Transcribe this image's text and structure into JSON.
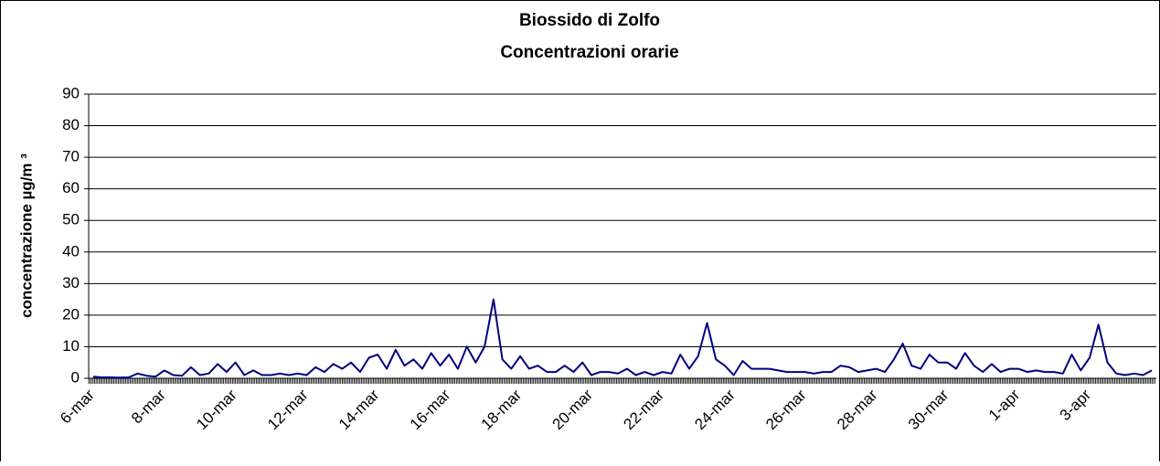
{
  "chart_data": {
    "type": "line",
    "title": "Biossido di Zolfo",
    "subtitle": "Concentrazioni orarie",
    "y_label": "concentrazione µg/m ³",
    "categories": [
      "6-mar",
      null,
      null,
      null,
      null,
      null,
      null,
      null,
      "8-mar",
      null,
      null,
      null,
      null,
      null,
      null,
      null,
      "10-mar",
      null,
      null,
      null,
      null,
      null,
      null,
      null,
      "12-mar",
      null,
      null,
      null,
      null,
      null,
      null,
      null,
      "14-mar",
      null,
      null,
      null,
      null,
      null,
      null,
      null,
      "16-mar",
      null,
      null,
      null,
      null,
      null,
      null,
      null,
      "18-mar",
      null,
      null,
      null,
      null,
      null,
      null,
      null,
      "20-mar",
      null,
      null,
      null,
      null,
      null,
      null,
      null,
      "22-mar",
      null,
      null,
      null,
      null,
      null,
      null,
      null,
      "24-mar",
      null,
      null,
      null,
      null,
      null,
      null,
      null,
      "26-mar",
      null,
      null,
      null,
      null,
      null,
      null,
      null,
      "28-mar",
      null,
      null,
      null,
      null,
      null,
      null,
      null,
      "30-mar",
      null,
      null,
      null,
      null,
      null,
      null,
      null,
      "1-apr",
      null,
      null,
      null,
      null,
      null,
      null,
      null,
      "3-apr",
      null,
      null,
      null,
      null,
      null,
      null,
      null
    ],
    "series": [
      {
        "name": "Biossido di Zolfo",
        "color": "#000080",
        "values": [
          0.5,
          0.3,
          0.3,
          0.2,
          0.3,
          1.5,
          0.8,
          0.5,
          2.5,
          1,
          0.8,
          3.5,
          1,
          1.5,
          4.5,
          2,
          5,
          1,
          2.5,
          1,
          1,
          1.5,
          1,
          1.5,
          1,
          3.5,
          2,
          4.5,
          3,
          5,
          2,
          6.5,
          7.5,
          3,
          9,
          4,
          6,
          3,
          8,
          4,
          7.5,
          3,
          10,
          5,
          10,
          25,
          6,
          3,
          7,
          3,
          4,
          2,
          2,
          4,
          2,
          5,
          1,
          2,
          2,
          1.5,
          3,
          1,
          2,
          1,
          2,
          1.5,
          7.5,
          3,
          7,
          17.5,
          6,
          4,
          1,
          5.5,
          3,
          3,
          3,
          2.5,
          2,
          2,
          2,
          1.5,
          2,
          2,
          4,
          3.5,
          2,
          2.5,
          3,
          2,
          6,
          11,
          4,
          3,
          7.5,
          5,
          5,
          3,
          8,
          4,
          2,
          4.5,
          2,
          3,
          3,
          2,
          2.5,
          2,
          2,
          1.5,
          7.5,
          2.5,
          6.5,
          17,
          5,
          1.5,
          1,
          1.5,
          1,
          2.5
        ]
      }
    ],
    "ylim": [
      0,
      90
    ],
    "yticks": [
      0,
      10,
      20,
      30,
      40,
      50,
      60,
      70,
      80,
      90
    ],
    "grid": true
  }
}
